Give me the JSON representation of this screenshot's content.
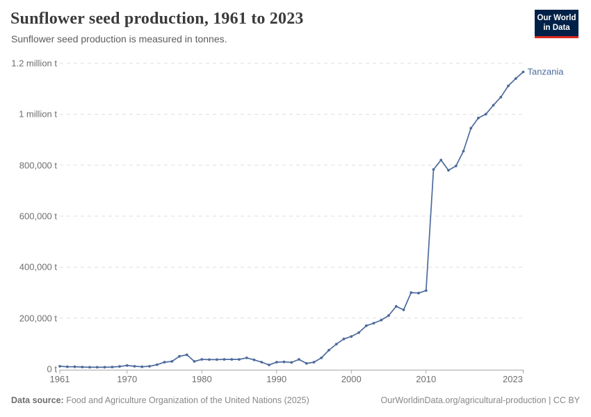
{
  "header": {
    "title": "Sunflower seed production, 1961 to 2023",
    "subtitle": "Sunflower seed production is measured in tonnes.",
    "logo": {
      "line1": "Our World",
      "line2": "in Data",
      "bg_color": "#002147",
      "accent_color": "#dc2a1d"
    }
  },
  "chart_data": {
    "type": "line",
    "title": "Sunflower seed production, 1961 to 2023",
    "xlabel": "",
    "ylabel": "tonnes",
    "xlim": [
      1961,
      2023
    ],
    "ylim": [
      0,
      1200000
    ],
    "grid": "horizontal-dashed",
    "legend_position": "end-of-line",
    "x_ticks": [
      1961,
      1970,
      1980,
      1990,
      2000,
      2010,
      2023
    ],
    "y_ticks": [
      {
        "value": 0,
        "label": "0 t"
      },
      {
        "value": 200000,
        "label": "200,000 t"
      },
      {
        "value": 400000,
        "label": "400,000 t"
      },
      {
        "value": 600000,
        "label": "600,000 t"
      },
      {
        "value": 800000,
        "label": "800,000 t"
      },
      {
        "value": 1000000,
        "label": "1 million t"
      },
      {
        "value": 1200000,
        "label": "1.2 million t"
      }
    ],
    "x": [
      1961,
      1962,
      1963,
      1964,
      1965,
      1966,
      1967,
      1968,
      1969,
      1970,
      1971,
      1972,
      1973,
      1974,
      1975,
      1976,
      1977,
      1978,
      1979,
      1980,
      1981,
      1982,
      1983,
      1984,
      1985,
      1986,
      1987,
      1988,
      1989,
      1990,
      1991,
      1992,
      1993,
      1994,
      1995,
      1996,
      1997,
      1998,
      1999,
      2000,
      2001,
      2002,
      2003,
      2004,
      2005,
      2006,
      2007,
      2008,
      2009,
      2010,
      2011,
      2012,
      2013,
      2014,
      2015,
      2016,
      2017,
      2018,
      2019,
      2020,
      2021,
      2022,
      2023
    ],
    "series": [
      {
        "name": "Tanzania",
        "color": "#4c6a9c",
        "values": [
          11000,
          9000,
          9000,
          8000,
          7000,
          7000,
          7000,
          8000,
          10000,
          14000,
          11000,
          9000,
          11000,
          17000,
          27000,
          30000,
          50000,
          56000,
          30000,
          38000,
          37000,
          37000,
          38000,
          38000,
          38000,
          44000,
          36000,
          27000,
          16000,
          27000,
          28000,
          26000,
          38000,
          22000,
          27000,
          44000,
          74000,
          98000,
          118000,
          128000,
          143000,
          170000,
          180000,
          192000,
          210000,
          246000,
          232000,
          300000,
          298000,
          308000,
          783000,
          820000,
          780000,
          797000,
          855000,
          945000,
          985000,
          1000000,
          1035000,
          1067000,
          1111000,
          1140000,
          1166000
        ]
      }
    ]
  },
  "footer": {
    "source_label": "Data source:",
    "source_text": "Food and Agriculture Organization of the United Nations (2025)",
    "right_text": "OurWorldinData.org/agricultural-production | CC BY"
  },
  "colors": {
    "line": "#4c6a9c",
    "gridline": "#dedede",
    "axis": "#a8a8a8",
    "tick_text": "#6e6e6e"
  }
}
